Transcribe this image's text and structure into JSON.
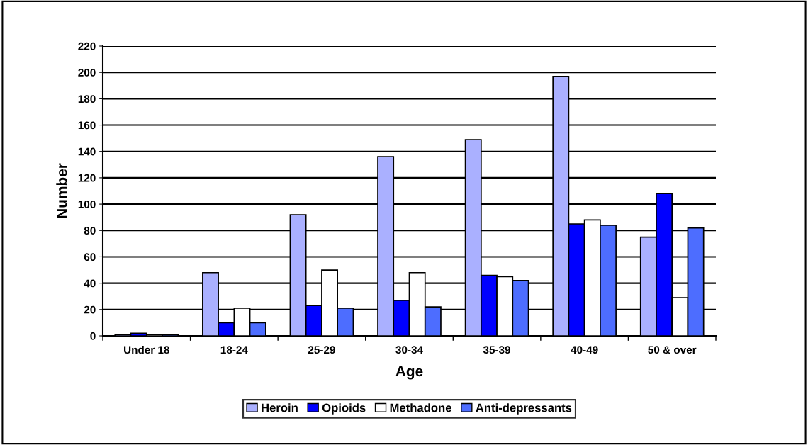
{
  "chart_data": {
    "type": "bar",
    "xlabel": "Age",
    "ylabel": "Number",
    "categories": [
      "Under 18",
      "18-24",
      "25-29",
      "30-34",
      "35-39",
      "40-49",
      "50 & over"
    ],
    "series": [
      {
        "name": "Heroin",
        "color": "#aab0ff",
        "values": [
          1,
          48,
          92,
          136,
          149,
          197,
          75
        ]
      },
      {
        "name": "Opioids",
        "color": "#0000ff",
        "values": [
          2,
          10,
          23,
          27,
          46,
          85,
          108
        ]
      },
      {
        "name": "Methadone",
        "color": "#ffffff",
        "values": [
          1,
          21,
          50,
          48,
          45,
          88,
          29
        ]
      },
      {
        "name": "Anti-depressants",
        "color": "#4d6dff",
        "values": [
          1,
          10,
          21,
          22,
          42,
          84,
          82
        ]
      }
    ],
    "ylim": [
      0,
      220
    ],
    "yticks": [
      0,
      20,
      40,
      60,
      80,
      100,
      120,
      140,
      160,
      180,
      200,
      220
    ],
    "grid": "y",
    "legend": "bottom"
  }
}
